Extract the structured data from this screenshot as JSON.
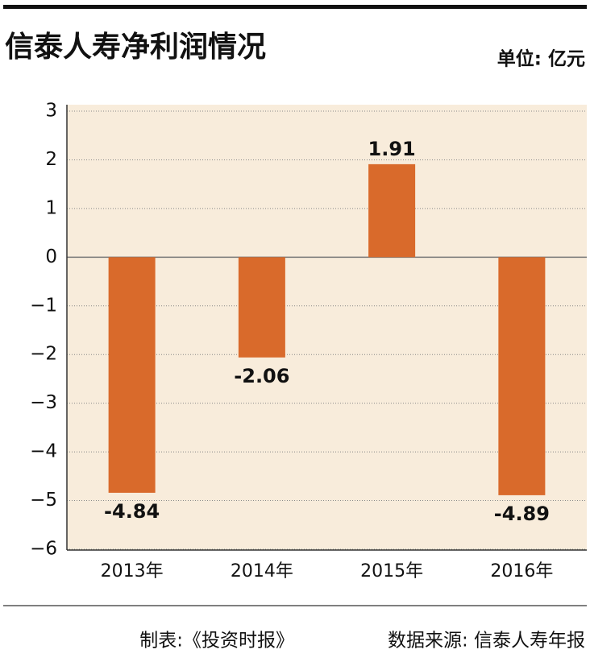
{
  "chart_data": {
    "type": "bar",
    "title": "信泰人寿净利润情况",
    "unit": "单位: 亿元",
    "categories": [
      "2013年",
      "2014年",
      "2015年",
      "2016年"
    ],
    "values": [
      -4.84,
      -2.06,
      1.91,
      -4.89
    ],
    "color": "#d96a2b",
    "ylim": [
      -6,
      3
    ],
    "yticks": [
      3,
      2,
      1,
      0,
      {
        "value": -1,
        "label": "−1"
      },
      {
        "value": -2,
        "label": "−2"
      },
      {
        "value": -3,
        "label": "−3"
      },
      {
        "value": -4,
        "label": "−4"
      },
      {
        "value": -5,
        "label": "−5"
      },
      {
        "value": -6,
        "label": "−6"
      }
    ],
    "grid": true,
    "credit": "制表:《投资时报》",
    "source": "数据来源: 信泰人寿年报"
  }
}
